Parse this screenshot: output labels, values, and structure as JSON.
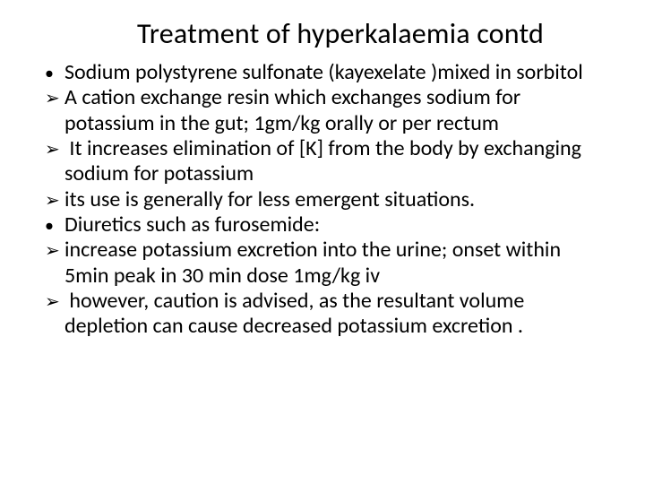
{
  "slide": {
    "title": "Treatment of hyperkalaemia contd",
    "title_fontsize": 32,
    "body_fontsize": 24,
    "text_color": "#000000",
    "background_color": "#ffffff",
    "items": [
      {
        "marker": "dot",
        "text": "Sodium polystyrene sulfonate (kayexelate )mixed in sorbitol"
      },
      {
        "marker": "arrow",
        "text": "A cation exchange resin which exchanges sodium for potassium in the gut; 1gm/kg orally or per rectum"
      },
      {
        "marker": "arrow",
        "text": " It increases elimination of [K] from the body by exchanging sodium for potassium"
      },
      {
        "marker": "arrow",
        "text": "its use is generally for less emergent situations."
      },
      {
        "marker": "dot",
        "text": "Diuretics such as furosemide:"
      },
      {
        "marker": "arrow",
        "text": "increase potassium excretion into the urine; onset within 5min peak in 30 min dose 1mg/kg iv"
      },
      {
        "marker": "arrow",
        "text": " however, caution is advised, as the resultant volume depletion can cause decreased potassium excretion ."
      }
    ]
  }
}
